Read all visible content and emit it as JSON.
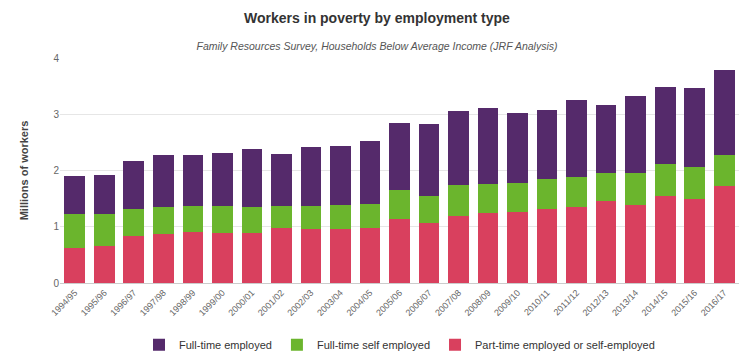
{
  "chart_data": {
    "type": "bar",
    "title": "Workers in poverty by employment type",
    "subtitle": "Family Resources Survey, Households Below Average Income (JRF Analysis)",
    "y_label": "Millions of workers",
    "categories": [
      "1994/95",
      "1995/96",
      "1996/97",
      "1997/98",
      "1998/99",
      "1999/00",
      "2000/01",
      "2001/02",
      "2002/03",
      "2003/04",
      "2004/05",
      "2005/06",
      "2006/07",
      "2007/08",
      "2008/09",
      "2009/10",
      "2010/11",
      "2011/12",
      "2012/13",
      "2013/14",
      "2014/15",
      "2015/16",
      "2016/17"
    ],
    "series": [
      {
        "name": "Part-time employed or self-employed",
        "color": "#d9405e",
        "values": [
          0.62,
          0.66,
          0.84,
          0.87,
          0.9,
          0.89,
          0.89,
          0.98,
          0.96,
          0.96,
          0.98,
          1.13,
          1.06,
          1.2,
          1.25,
          1.27,
          1.31,
          1.36,
          1.46,
          1.38,
          1.54,
          1.49,
          1.72
        ]
      },
      {
        "name": "Full-time self employed",
        "color": "#6bb52d",
        "values": [
          0.6,
          0.56,
          0.47,
          0.49,
          0.47,
          0.48,
          0.46,
          0.39,
          0.41,
          0.43,
          0.42,
          0.53,
          0.49,
          0.55,
          0.51,
          0.51,
          0.54,
          0.52,
          0.5,
          0.58,
          0.57,
          0.57,
          0.56
        ]
      },
      {
        "name": "Full-time employed",
        "color": "#552a6b",
        "values": [
          0.68,
          0.7,
          0.86,
          0.91,
          0.91,
          0.95,
          1.03,
          0.92,
          1.05,
          1.05,
          1.12,
          1.19,
          1.27,
          1.3,
          1.35,
          1.25,
          1.22,
          1.37,
          1.2,
          1.36,
          1.37,
          1.41,
          1.5
        ]
      }
    ],
    "stacked": true,
    "ylim": [
      0,
      4
    ],
    "yticks": [
      0,
      1,
      2,
      3,
      4
    ],
    "grid": true,
    "legend": "bottom"
  }
}
